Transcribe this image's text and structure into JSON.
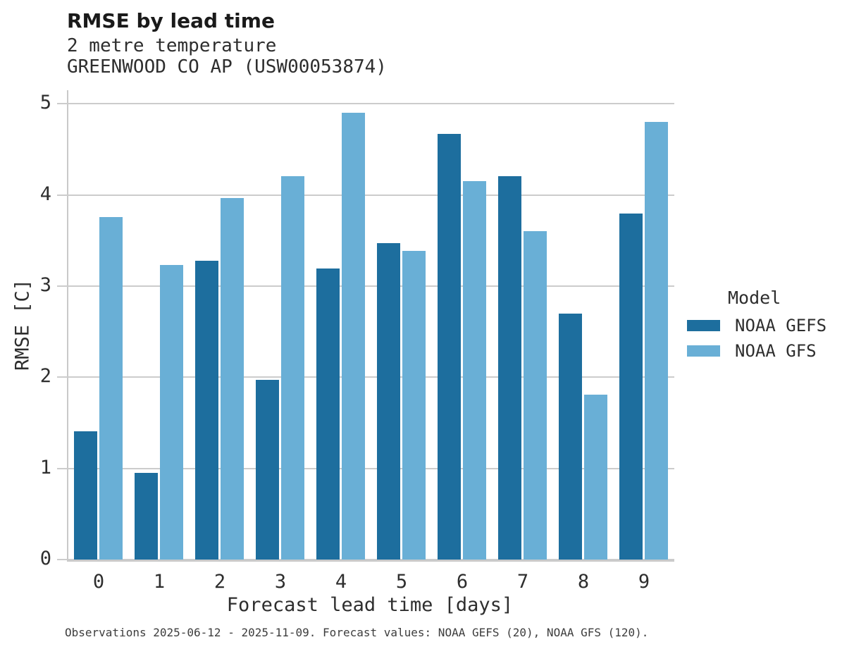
{
  "header": {
    "title": "RMSE by lead time",
    "subtitle1": "2 metre temperature",
    "subtitle2": "GREENWOOD CO AP (USW00053874)"
  },
  "chart_data": {
    "type": "bar",
    "title": "RMSE by lead time",
    "subtitle": [
      "2 metre temperature",
      "GREENWOOD CO AP (USW00053874)"
    ],
    "categories": [
      "0",
      "1",
      "2",
      "3",
      "4",
      "5",
      "6",
      "7",
      "8",
      "9"
    ],
    "series": [
      {
        "name": "NOAA GEFS",
        "color": "#1d6e9e",
        "values": [
          1.41,
          0.95,
          3.28,
          1.97,
          3.19,
          3.47,
          4.67,
          4.21,
          2.7,
          3.8
        ]
      },
      {
        "name": "NOAA GFS",
        "color": "#69afd6",
        "values": [
          3.76,
          3.23,
          3.97,
          4.21,
          4.9,
          3.39,
          4.15,
          3.6,
          1.81,
          4.8
        ]
      }
    ],
    "xlabel": "Forecast lead time [days]",
    "ylabel": "RMSE [C]",
    "ylim": [
      0,
      5.15
    ],
    "yticks": [
      0,
      1,
      2,
      3,
      4,
      5
    ],
    "grid": "horizontal",
    "legend_title": "Model",
    "legend_position": "right-outside"
  },
  "legend": {
    "title": "Model",
    "entries": [
      {
        "label": "NOAA GEFS",
        "color": "#1d6e9e"
      },
      {
        "label": "NOAA GFS",
        "color": "#69afd6"
      }
    ]
  },
  "caption": "Observations 2025-06-12 - 2025-11-09. Forecast values: NOAA GEFS (20), NOAA GFS (120).",
  "colors": {
    "grid": "#cccccc",
    "spine": "#c9c9c9",
    "text": "#2e2e2e",
    "title_text": "#1a1a1a",
    "caption_text": "#3d3d3d",
    "background": "#ffffff"
  }
}
